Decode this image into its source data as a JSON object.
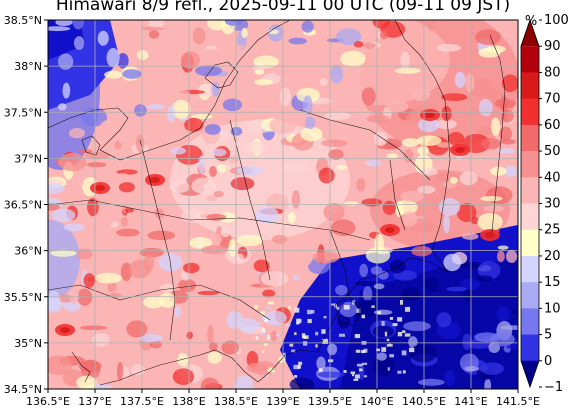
{
  "title": "Himawari 8/9 refl., 2025-09-11 00 UTC (09-11 09 JST)",
  "x_ticks": [
    "136.5°E",
    "137°E",
    "137.5°E",
    "138°E",
    "138.5°E",
    "139°E",
    "139.5°E",
    "140°E",
    "140.5°E",
    "141°E",
    "141.5°E"
  ],
  "y_ticks": [
    "38.5°N",
    "38°N",
    "37.5°N",
    "37°N",
    "36.5°N",
    "36°N",
    "35.5°N",
    "35°N",
    "34.5°N"
  ],
  "colorbar": {
    "unit": "%",
    "labels": [
      "100",
      "90",
      "80",
      "70",
      "60",
      "50",
      "40",
      "30",
      "25",
      "20",
      "15",
      "10",
      "5",
      "0",
      "−1"
    ],
    "colors": [
      "#8b0000",
      "#b3000d",
      "#d91a1a",
      "#f23030",
      "#f26b6b",
      "#f79090",
      "#fbb5b5",
      "#fdd5d5",
      "#ffffc8",
      "#d4d4ff",
      "#aaaaf2",
      "#7777ee",
      "#3333e6",
      "#1111cc",
      "#000088"
    ]
  },
  "chart_data": {
    "type": "heatmap",
    "title": "Himawari 8/9 refl., 2025-09-11 00 UTC (09-11 09 JST)",
    "xlim": [
      136.5,
      141.5
    ],
    "ylim": [
      34.5,
      38.5
    ],
    "grid": true,
    "colorbar_levels": [
      -1,
      0,
      5,
      10,
      15,
      20,
      25,
      30,
      40,
      50,
      60,
      70,
      80,
      90,
      100
    ],
    "colorbar_unit": "%"
  }
}
